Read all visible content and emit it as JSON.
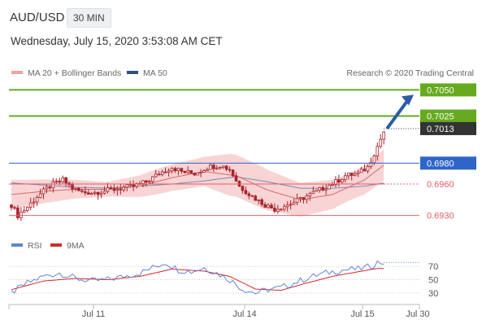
{
  "header": {
    "symbol": "AUD/USD",
    "timeframe": "30 MIN",
    "datetime": "Wednesday, July 15, 2020 3:53:08 AM CET"
  },
  "legend": {
    "ma20_bb": "MA 20 + Bollinger Bands",
    "ma50": "MA 50",
    "credit": "Research © 2020 Trading Central",
    "rsi": "RSI",
    "ma9": "9MA"
  },
  "colors": {
    "resistance": "#66aa1f",
    "pivot": "#2f64c8",
    "support": "#e35f66",
    "current": "#333333",
    "arrow": "#2b5da6",
    "candle": "#a8242c",
    "bollinger": "#f8d4d4",
    "ma50": "#7b8bb1",
    "ma20": "#d9676b",
    "rsi": "#6185d6",
    "rsi_ma": "#d42a2a"
  },
  "levels": [
    {
      "value": "0.7050",
      "kind": "resistance"
    },
    {
      "value": "0.7025",
      "kind": "resistance"
    },
    {
      "value": "0.7013",
      "kind": "current"
    },
    {
      "value": "0.6980",
      "kind": "pivot"
    },
    {
      "value": "0.6960",
      "kind": "support"
    },
    {
      "value": "0.6930",
      "kind": "support"
    }
  ],
  "rsi_ticks": [
    "70",
    "50",
    "30"
  ],
  "chart_data": {
    "type": "candlestick",
    "x_tick_labels": [
      "Jul 11",
      "Jul 14",
      "Jul 15",
      "Jul 30"
    ],
    "ylim": [
      0.6918,
      0.7062
    ],
    "price_path": [
      [
        0,
        0.694
      ],
      [
        2,
        0.693
      ],
      [
        5,
        0.6938
      ],
      [
        8,
        0.6948
      ],
      [
        12,
        0.6958
      ],
      [
        16,
        0.6964
      ],
      [
        19,
        0.6956
      ],
      [
        22,
        0.6952
      ],
      [
        26,
        0.6952
      ],
      [
        30,
        0.6954
      ],
      [
        34,
        0.6956
      ],
      [
        38,
        0.6958
      ],
      [
        42,
        0.6962
      ],
      [
        46,
        0.697
      ],
      [
        50,
        0.6976
      ],
      [
        53,
        0.6972
      ],
      [
        57,
        0.697
      ],
      [
        61,
        0.6976
      ],
      [
        65,
        0.6978
      ],
      [
        68,
        0.6974
      ],
      [
        71,
        0.6958
      ],
      [
        75,
        0.6948
      ],
      [
        79,
        0.694
      ],
      [
        82,
        0.6936
      ],
      [
        86,
        0.694
      ],
      [
        89,
        0.6944
      ],
      [
        93,
        0.695
      ],
      [
        97,
        0.6956
      ],
      [
        101,
        0.6962
      ],
      [
        104,
        0.6968
      ],
      [
        108,
        0.697
      ],
      [
        111,
        0.6976
      ],
      [
        114,
        0.6996
      ],
      [
        116,
        0.701
      ]
    ],
    "ma50_path": [
      [
        0,
        0.6961
      ],
      [
        10,
        0.6959
      ],
      [
        20,
        0.6957
      ],
      [
        30,
        0.6956
      ],
      [
        40,
        0.6958
      ],
      [
        50,
        0.696
      ],
      [
        60,
        0.6963
      ],
      [
        70,
        0.6967
      ],
      [
        80,
        0.6962
      ],
      [
        90,
        0.6956
      ],
      [
        100,
        0.6956
      ],
      [
        110,
        0.6958
      ],
      [
        116,
        0.6961
      ]
    ],
    "ma20_path": [
      [
        0,
        0.695
      ],
      [
        10,
        0.6953
      ],
      [
        20,
        0.6955
      ],
      [
        30,
        0.6955
      ],
      [
        40,
        0.6958
      ],
      [
        50,
        0.6966
      ],
      [
        60,
        0.6972
      ],
      [
        70,
        0.6968
      ],
      [
        80,
        0.6954
      ],
      [
        90,
        0.6945
      ],
      [
        100,
        0.695
      ],
      [
        110,
        0.6964
      ],
      [
        116,
        0.6978
      ]
    ],
    "bb_width_path": [
      [
        0,
        0.0014
      ],
      [
        15,
        0.001
      ],
      [
        30,
        0.0007
      ],
      [
        45,
        0.0012
      ],
      [
        60,
        0.0014
      ],
      [
        68,
        0.002
      ],
      [
        78,
        0.002
      ],
      [
        90,
        0.0016
      ],
      [
        105,
        0.0013
      ],
      [
        116,
        0.0015
      ]
    ],
    "rsi_path": [
      [
        0,
        30
      ],
      [
        5,
        45
      ],
      [
        10,
        55
      ],
      [
        15,
        60
      ],
      [
        20,
        52
      ],
      [
        25,
        48
      ],
      [
        30,
        50
      ],
      [
        35,
        55
      ],
      [
        40,
        60
      ],
      [
        45,
        70
      ],
      [
        48,
        76
      ],
      [
        52,
        65
      ],
      [
        56,
        62
      ],
      [
        60,
        68
      ],
      [
        64,
        60
      ],
      [
        68,
        50
      ],
      [
        72,
        36
      ],
      [
        76,
        30
      ],
      [
        80,
        35
      ],
      [
        84,
        38
      ],
      [
        88,
        45
      ],
      [
        92,
        52
      ],
      [
        96,
        58
      ],
      [
        100,
        62
      ],
      [
        104,
        65
      ],
      [
        108,
        66
      ],
      [
        112,
        70
      ],
      [
        114,
        76
      ]
    ],
    "rsi_ma_path": [
      [
        0,
        35
      ],
      [
        10,
        48
      ],
      [
        20,
        52
      ],
      [
        30,
        50
      ],
      [
        40,
        55
      ],
      [
        50,
        66
      ],
      [
        60,
        63
      ],
      [
        68,
        55
      ],
      [
        76,
        36
      ],
      [
        84,
        34
      ],
      [
        92,
        45
      ],
      [
        100,
        55
      ],
      [
        108,
        62
      ],
      [
        114,
        67
      ]
    ]
  }
}
